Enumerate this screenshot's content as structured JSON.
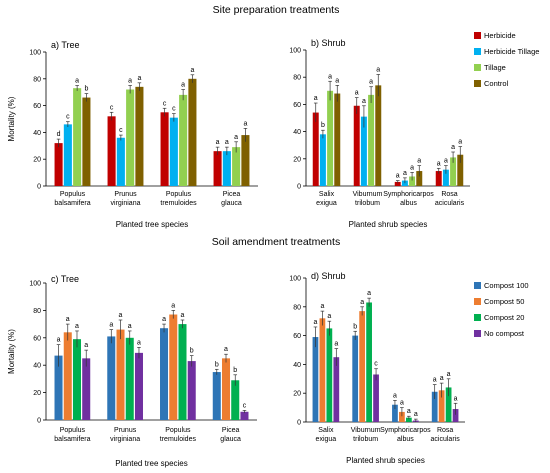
{
  "headings": {
    "top": "Site preparation treatments",
    "bottom": "Soil amendment treatments"
  },
  "chart_data": [
    {
      "type": "bar",
      "title": "a) Tree",
      "ylabel": "Mortality (%)",
      "xlabel": "Planted tree species",
      "ylim": [
        0,
        100
      ],
      "yticks": [
        0,
        20,
        40,
        60,
        80,
        100
      ],
      "categories": [
        "Populus balsamifera",
        "Prunus virginiana",
        "Populus tremuloides",
        "Picea glauca"
      ],
      "series": [
        {
          "name": "Herbicide",
          "color": "#c00000",
          "values": [
            32,
            52,
            55,
            26
          ],
          "errors": [
            3,
            3,
            3,
            3
          ],
          "letters": [
            "d",
            "c",
            "c",
            "a"
          ]
        },
        {
          "name": "Herbicide Tillage",
          "color": "#00b0f0",
          "values": [
            46,
            36,
            51,
            26
          ],
          "errors": [
            2,
            2,
            3,
            3
          ],
          "letters": [
            "c",
            "c",
            "c",
            "a"
          ]
        },
        {
          "name": "Tillage",
          "color": "#92d050",
          "values": [
            73,
            72,
            68,
            29
          ],
          "errors": [
            2,
            3,
            4,
            4
          ],
          "letters": [
            "a",
            "a",
            "a",
            "a"
          ]
        },
        {
          "name": "Control",
          "color": "#7f6000",
          "values": [
            66,
            74,
            80,
            38
          ],
          "errors": [
            3,
            3,
            3,
            5
          ],
          "letters": [
            "b",
            "a",
            "a",
            "a"
          ]
        }
      ]
    },
    {
      "type": "bar",
      "title": "b) Shrub",
      "ylabel": "",
      "xlabel": "Planted shrub species",
      "ylim": [
        0,
        100
      ],
      "yticks": [
        0,
        20,
        40,
        60,
        80,
        100
      ],
      "categories": [
        "Salix exigua",
        "Viburnum trilobum",
        "Symphoricarpos albus",
        "Rosa acicularis"
      ],
      "legend": "right",
      "series": [
        {
          "name": "Herbicide",
          "color": "#c00000",
          "values": [
            54,
            59,
            3,
            11
          ],
          "errors": [
            7,
            6,
            1,
            2
          ],
          "letters": [
            "a",
            "a",
            "a",
            "a"
          ]
        },
        {
          "name": "Herbicide Tillage",
          "color": "#00b0f0",
          "values": [
            38,
            51,
            4,
            12
          ],
          "errors": [
            3,
            8,
            2,
            3
          ],
          "letters": [
            "b",
            "a",
            "a",
            "a"
          ]
        },
        {
          "name": "Tillage",
          "color": "#92d050",
          "values": [
            70,
            67,
            7,
            21
          ],
          "errors": [
            7,
            6,
            3,
            4
          ],
          "letters": [
            "a",
            "a",
            "a",
            "a"
          ]
        },
        {
          "name": "Control",
          "color": "#7f6000",
          "values": [
            68,
            74,
            11,
            23
          ],
          "errors": [
            6,
            8,
            4,
            6
          ],
          "letters": [
            "a",
            "a",
            "a",
            "a"
          ]
        }
      ]
    },
    {
      "type": "bar",
      "title": "c) Tree",
      "ylabel": "Mortality (%)",
      "xlabel": "Planted tree species",
      "ylim": [
        0,
        100
      ],
      "yticks": [
        0,
        20,
        40,
        60,
        80,
        100
      ],
      "categories": [
        "Populus balsamifera",
        "Prunus virginiana",
        "Populus tremuloides",
        "Picea glauca"
      ],
      "series": [
        {
          "name": "Compost 100",
          "color": "#2e75b6",
          "values": [
            47,
            61,
            67,
            35
          ],
          "errors": [
            8,
            5,
            3,
            2
          ],
          "letters": [
            "a",
            "a",
            "a",
            "b"
          ]
        },
        {
          "name": "Compost 50",
          "color": "#ed7d31",
          "values": [
            64,
            66,
            77,
            45
          ],
          "errors": [
            6,
            7,
            3,
            3
          ],
          "letters": [
            "a",
            "a",
            "a",
            "a"
          ]
        },
        {
          "name": "Compost 20",
          "color": "#00b050",
          "values": [
            59,
            60,
            70,
            29
          ],
          "errors": [
            6,
            5,
            3,
            4
          ],
          "letters": [
            "a",
            "a",
            "a",
            "b"
          ]
        },
        {
          "name": "No compost",
          "color": "#7030a0",
          "values": [
            45,
            49,
            43,
            6
          ],
          "errors": [
            6,
            4,
            4,
            1
          ],
          "letters": [
            "a",
            "a",
            "b",
            "c"
          ]
        }
      ]
    },
    {
      "type": "bar",
      "title": "d) Shrub",
      "ylabel": "",
      "xlabel": "Planted shrub species",
      "ylim": [
        0,
        100
      ],
      "yticks": [
        0,
        20,
        40,
        60,
        80,
        100
      ],
      "categories": [
        "Salix exigua",
        "Viburnum trilobum",
        "Symphoricarpos albus",
        "Rosa acicularis"
      ],
      "legend": "right",
      "series": [
        {
          "name": "Compost 100",
          "color": "#2e75b6",
          "values": [
            59,
            60,
            12,
            21
          ],
          "errors": [
            7,
            3,
            3,
            5
          ],
          "letters": [
            "a",
            "b",
            "a",
            "a"
          ]
        },
        {
          "name": "Compost 50",
          "color": "#ed7d31",
          "values": [
            72,
            77,
            7,
            22
          ],
          "errors": [
            5,
            3,
            3,
            5
          ],
          "letters": [
            "a",
            "a",
            "a",
            "a"
          ]
        },
        {
          "name": "Compost 20",
          "color": "#00b050",
          "values": [
            65,
            83,
            3,
            24
          ],
          "errors": [
            5,
            3,
            1,
            6
          ],
          "letters": [
            "a",
            "a",
            "a",
            "a"
          ]
        },
        {
          "name": "No compost",
          "color": "#7030a0",
          "values": [
            45,
            33,
            1,
            9
          ],
          "errors": [
            6,
            4,
            1,
            4
          ],
          "letters": [
            "a",
            "c",
            "a",
            "a"
          ]
        }
      ]
    }
  ]
}
